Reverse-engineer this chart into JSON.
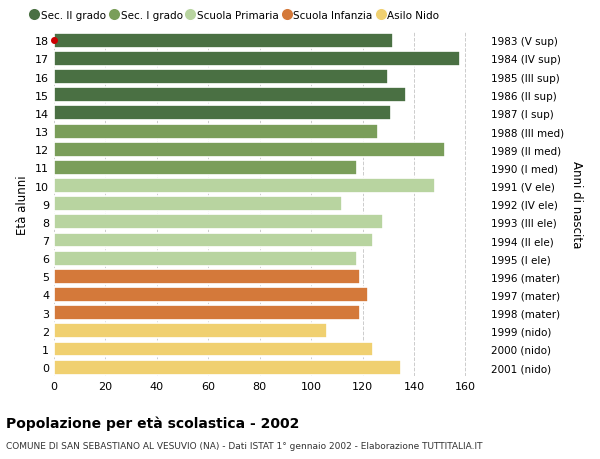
{
  "ages": [
    18,
    17,
    16,
    15,
    14,
    13,
    12,
    11,
    10,
    9,
    8,
    7,
    6,
    5,
    4,
    3,
    2,
    1,
    0
  ],
  "labels_right": [
    "1983 (V sup)",
    "1984 (IV sup)",
    "1985 (III sup)",
    "1986 (II sup)",
    "1987 (I sup)",
    "1988 (III med)",
    "1989 (II med)",
    "1990 (I med)",
    "1991 (V ele)",
    "1992 (IV ele)",
    "1993 (III ele)",
    "1994 (II ele)",
    "1995 (I ele)",
    "1996 (mater)",
    "1997 (mater)",
    "1998 (mater)",
    "1999 (nido)",
    "2000 (nido)",
    "2001 (nido)"
  ],
  "values": [
    132,
    158,
    130,
    137,
    131,
    126,
    152,
    118,
    148,
    112,
    128,
    124,
    118,
    119,
    122,
    119,
    106,
    124,
    135
  ],
  "colors": [
    "#4a7043",
    "#4a7043",
    "#4a7043",
    "#4a7043",
    "#4a7043",
    "#7a9e5a",
    "#7a9e5a",
    "#7a9e5a",
    "#b8d4a0",
    "#b8d4a0",
    "#b8d4a0",
    "#b8d4a0",
    "#b8d4a0",
    "#d4793a",
    "#d4793a",
    "#d4793a",
    "#f0d070",
    "#f0d070",
    "#f0d070"
  ],
  "legend_labels": [
    "Sec. II grado",
    "Sec. I grado",
    "Scuola Primaria",
    "Scuola Infanzia",
    "Asilo Nido"
  ],
  "legend_colors": [
    "#4a7043",
    "#7a9e5a",
    "#b8d4a0",
    "#d4793a",
    "#f0d070"
  ],
  "ylabel_left": "Età alunni",
  "ylabel_right": "Anni di nascita",
  "title": "Popolazione per età scolastica - 2002",
  "subtitle": "COMUNE DI SAN SEBASTIANO AL VESUVIO (NA) - Dati ISTAT 1° gennaio 2002 - Elaborazione TUTTITALIA.IT",
  "xlim": [
    0,
    168
  ],
  "xticks": [
    0,
    20,
    40,
    60,
    80,
    100,
    120,
    140,
    160
  ],
  "background_color": "#ffffff",
  "bar_edge_color": "#ffffff",
  "grid_color": "#cccccc",
  "bar_height": 0.82
}
